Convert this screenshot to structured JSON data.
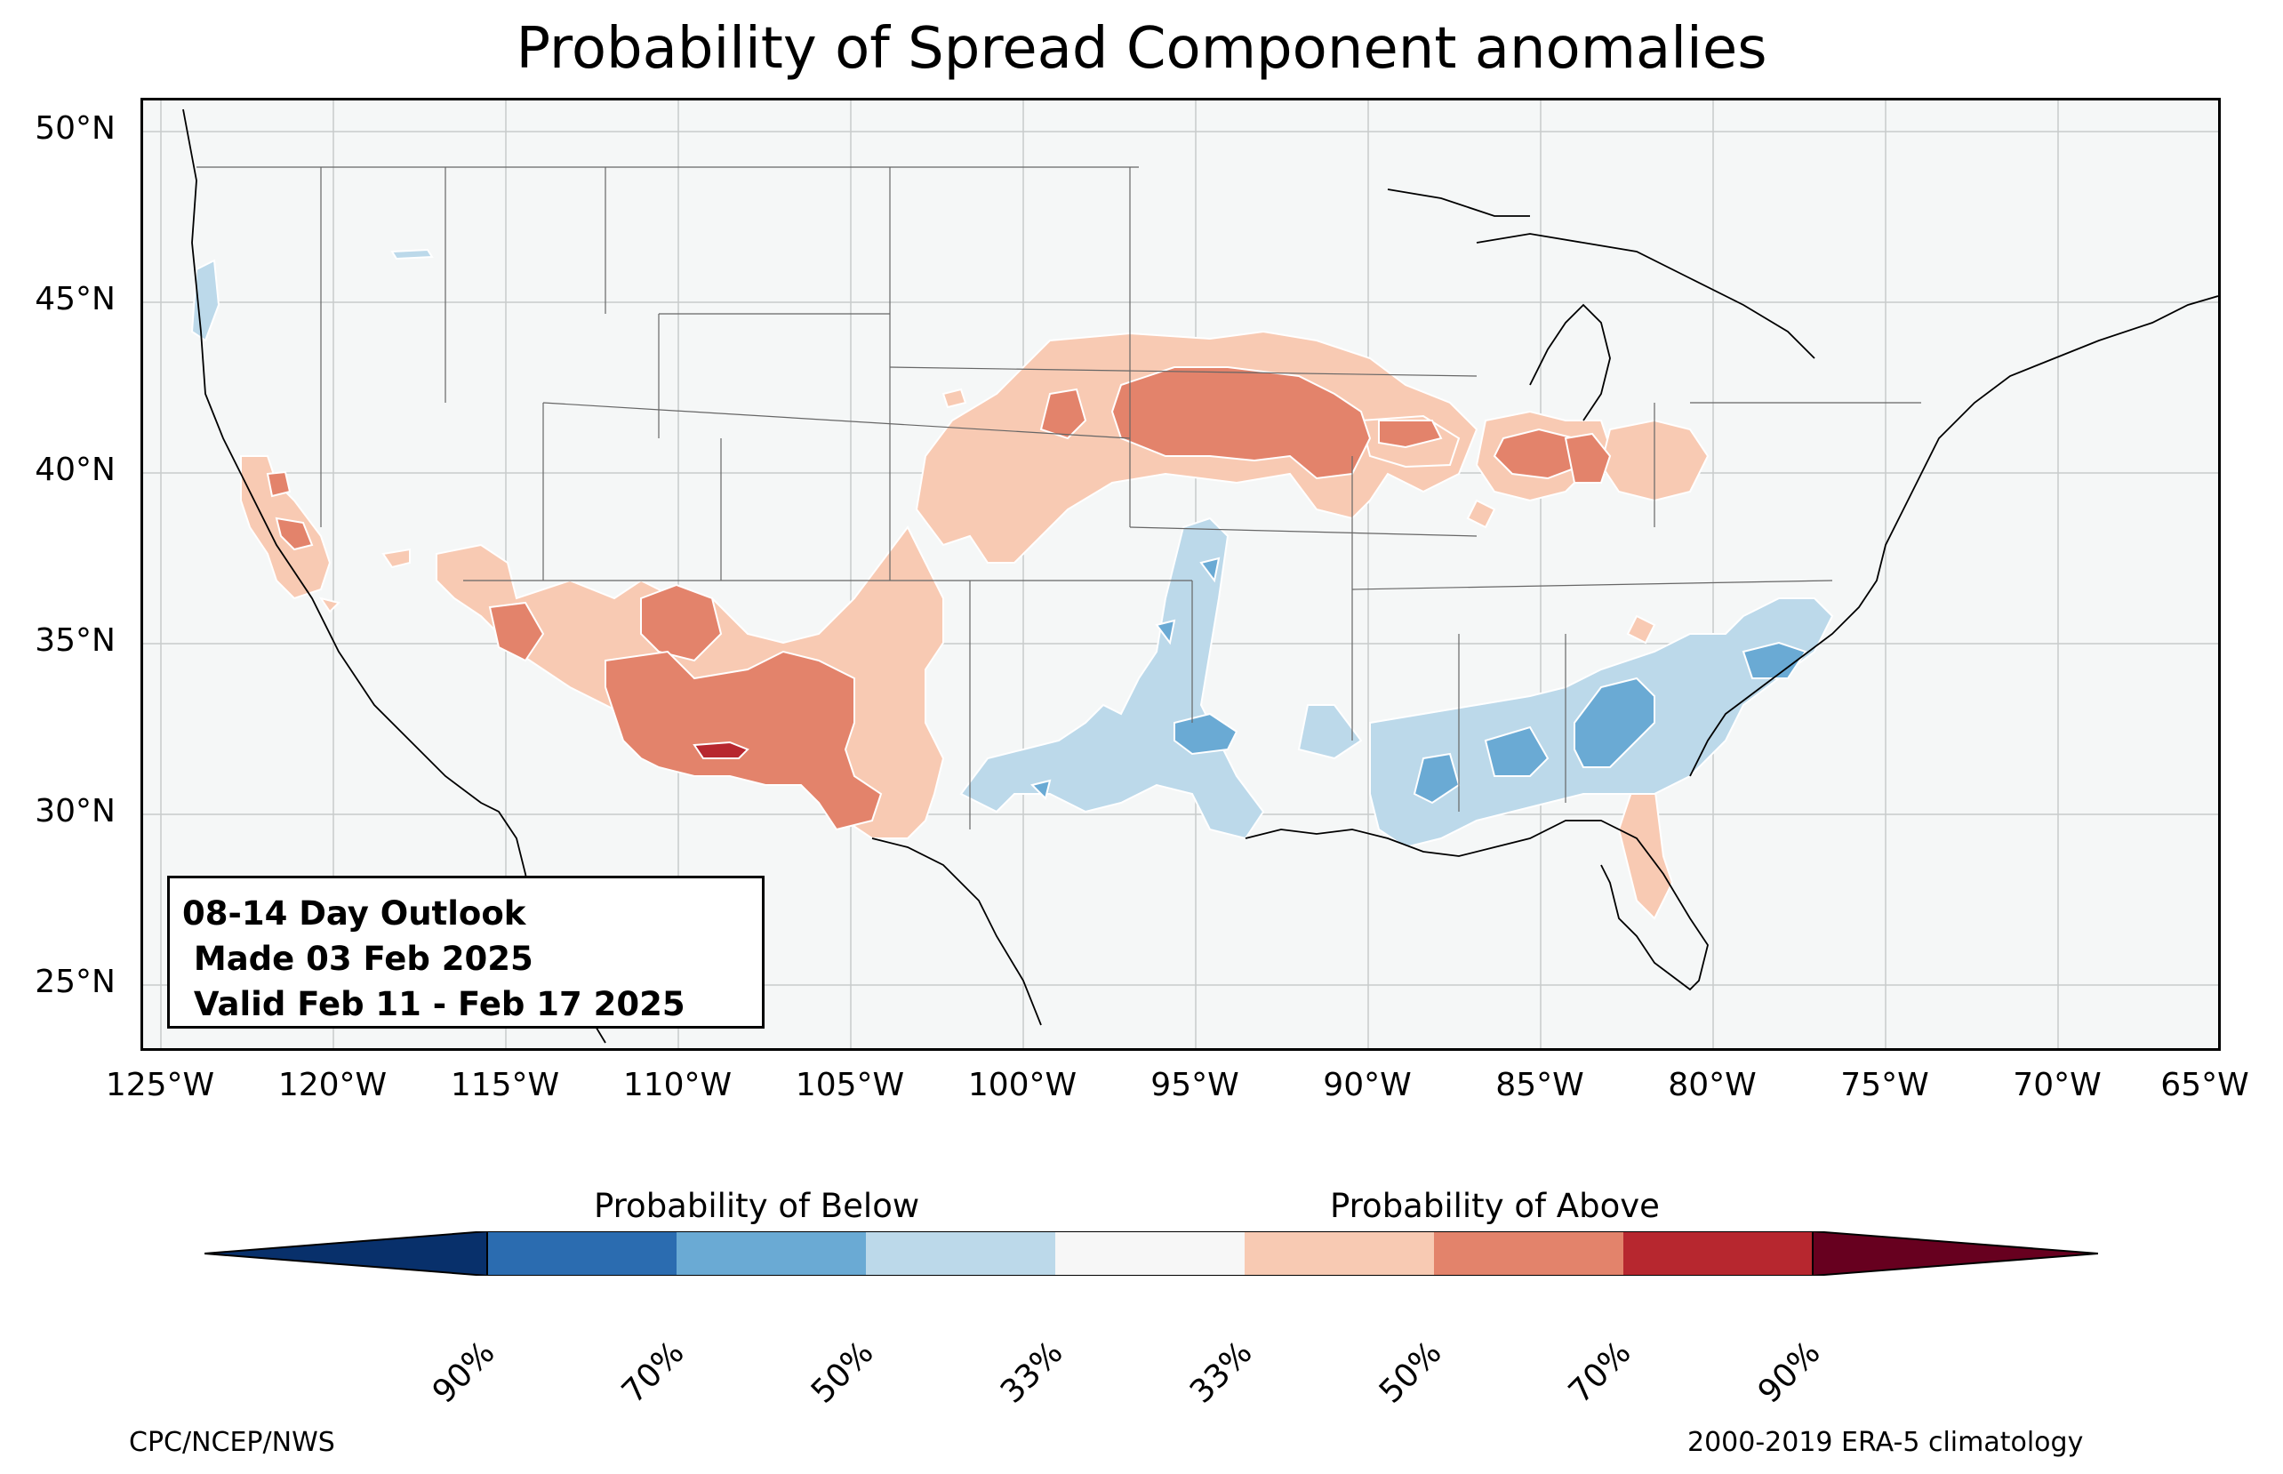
{
  "title": "Probability of Spread Component anomalies",
  "info_box": {
    "line1": "08-14 Day Outlook",
    "line2": " Made 03 Feb 2025",
    "line3": " Valid Feb 11 - Feb 17 2025"
  },
  "lat_labels": [
    "50°N",
    "45°N",
    "40°N",
    "35°N",
    "30°N",
    "25°N"
  ],
  "lon_labels": [
    "125°W",
    "120°W",
    "115°W",
    "110°W",
    "105°W",
    "100°W",
    "95°W",
    "90°W",
    "85°W",
    "80°W",
    "75°W",
    "70°W",
    "65°W"
  ],
  "colorbar": {
    "below_label": "Probability of Below",
    "above_label": "Probability of Above",
    "ticks": [
      "90%",
      "70%",
      "50%",
      "33%",
      "33%",
      "50%",
      "70%",
      "90%"
    ],
    "colors": [
      "#08306b",
      "#2b6cb0",
      "#6aaad4",
      "#bcd9ea",
      "#f7f7f7",
      "#f8cab3",
      "#e3836b",
      "#b7272f",
      "#67001f"
    ]
  },
  "footer": {
    "left": "CPC/NCEP/NWS",
    "right": "2000-2019 ERA-5 climatology"
  },
  "colors": {
    "map_background": "#f5f7f7",
    "above_33": "#f8cab3",
    "above_50": "#e3836b",
    "above_70": "#b7272f",
    "below_33": "#bcd9ea",
    "below_50": "#6aaad4"
  }
}
